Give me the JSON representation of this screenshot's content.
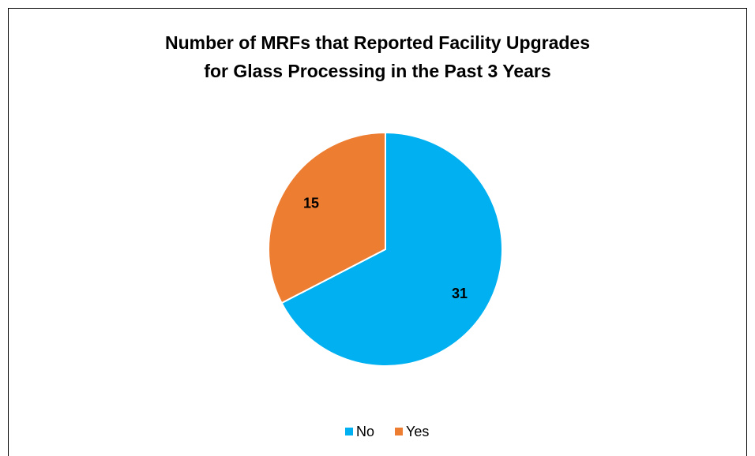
{
  "chart_data": {
    "type": "pie",
    "title": [
      "Number of MRFs that Reported Facility Upgrades",
      "for Glass Processing in the Past 3 Years"
    ],
    "categories": [
      "No",
      "Yes"
    ],
    "values": [
      31,
      15
    ],
    "colors": [
      "#00b0f0",
      "#ed7d31"
    ],
    "legend": "bottom"
  }
}
